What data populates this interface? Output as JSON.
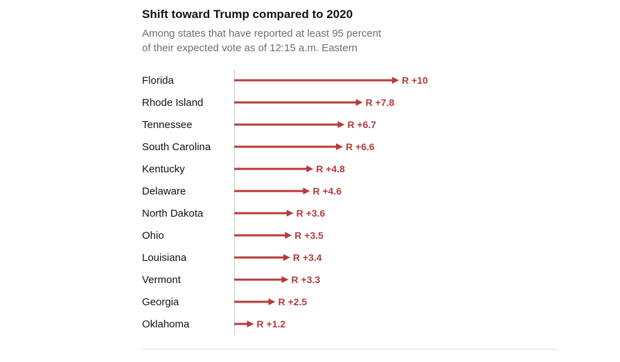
{
  "header": {
    "title": "Shift toward Trump compared to 2020",
    "subtitle_line1": "Among states that have reported at least 95 percent",
    "subtitle_line2": "of their expected vote as of 12:15 a.m. Eastern"
  },
  "colors": {
    "arrow": "#b83a3a",
    "label": "#b83a3a",
    "baseline": "#cccccc"
  },
  "chart_data": {
    "type": "bar",
    "orientation": "horizontal",
    "title": "Shift toward Trump compared to 2020",
    "categories": [
      "Florida",
      "Rhode Island",
      "Tennessee",
      "South Carolina",
      "Kentucky",
      "Delaware",
      "North Dakota",
      "Ohio",
      "Louisiana",
      "Vermont",
      "Georgia",
      "Oklahoma"
    ],
    "values": [
      10,
      7.8,
      6.7,
      6.6,
      4.8,
      4.6,
      3.6,
      3.5,
      3.4,
      3.3,
      2.5,
      1.2
    ],
    "value_labels": [
      "R +10",
      "R +7.8",
      "R +6.7",
      "R +6.6",
      "R +4.8",
      "R +4.6",
      "R +3.6",
      "R +3.5",
      "R +3.4",
      "R +3.3",
      "R +2.5",
      "R +1.2"
    ],
    "xlim": [
      0,
      10
    ],
    "grid": false,
    "legend": "none"
  }
}
